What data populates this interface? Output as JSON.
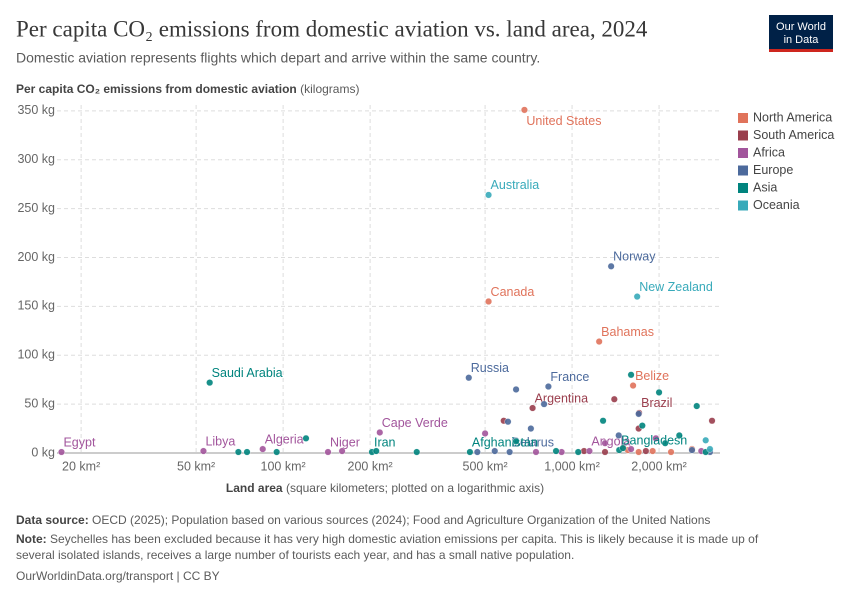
{
  "header": {
    "logo": [
      "Our World",
      "in Data"
    ]
  },
  "chart_data": {
    "type": "scatter",
    "title": "Per capita CO₂ emissions from domestic aviation vs. land area, 2024",
    "subtitle": "Domestic aviation represents flights which depart and arrive within the same country.",
    "y_label": "Per capita CO₂ emissions from domestic aviation",
    "y_label_unit": "(kilograms)",
    "x_label": "Land area",
    "x_label_note": "(square kilometers; plotted on a logarithmic axis)",
    "x_log": true,
    "grid": true,
    "legend": "right",
    "xlim": [
      16.5,
      3250
    ],
    "ylim": [
      0,
      356
    ],
    "xticks": [
      {
        "value": 20,
        "label": "20 km²"
      },
      {
        "value": 50,
        "label": "50 km²"
      },
      {
        "value": 100,
        "label": "100 km²"
      },
      {
        "value": 200,
        "label": "200 km²"
      },
      {
        "value": 500,
        "label": "500 km²"
      },
      {
        "value": 1000,
        "label": "1,000 km²"
      },
      {
        "value": 2000,
        "label": "2,000 km²"
      }
    ],
    "yticks": [
      {
        "value": 0,
        "label": "0 kg"
      },
      {
        "value": 50,
        "label": "50 kg"
      },
      {
        "value": 100,
        "label": "100 kg"
      },
      {
        "value": 150,
        "label": "150 kg"
      },
      {
        "value": 200,
        "label": "200 kg"
      },
      {
        "value": 250,
        "label": "250 kg"
      },
      {
        "value": 300,
        "label": "300 kg"
      },
      {
        "value": 350,
        "label": "350 kg"
      }
    ],
    "series": [
      {
        "name": "North America",
        "color": "#e0735b",
        "x": [
          684,
          514,
          1241,
          1626,
          1500,
          1560,
          1900,
          2600,
          1700,
          2200
        ],
        "values": [
          351,
          155,
          114,
          69,
          5,
          3,
          2,
          4,
          1,
          1
        ],
        "labels": [
          "United States",
          "Canada",
          "Bahamas",
          "Belize",
          null,
          null,
          null,
          null,
          null,
          null
        ]
      },
      {
        "name": "South America",
        "color": "#9a3e4d",
        "x": [
          730,
          1706,
          1400,
          1700,
          3050,
          580,
          1100,
          1300,
          1800
        ],
        "values": [
          46,
          41,
          55,
          25,
          33,
          33,
          2,
          1,
          2
        ],
        "labels": [
          "Argentina",
          "Brazil",
          null,
          null,
          null,
          null,
          null,
          null,
          null
        ]
      },
      {
        "name": "Africa",
        "color": "#a2559c",
        "x": [
          17.1,
          53,
          85,
          143,
          216,
          1148,
          500,
          1950,
          1300,
          160,
          920,
          2800,
          750,
          1600
        ],
        "values": [
          1,
          2,
          4,
          1,
          21,
          2,
          20,
          15,
          10,
          2,
          1,
          2,
          1,
          4
        ],
        "labels": [
          "Egypt",
          "Libya",
          "Algeria",
          "Niger",
          "Cape Verde",
          "Angola",
          null,
          null,
          null,
          null,
          null,
          null,
          null,
          null
        ]
      },
      {
        "name": "Europe",
        "color": "#4c6a9c",
        "x": [
          439,
          828,
          1365,
          608,
          640,
          800,
          600,
          720,
          1450,
          1700,
          540,
          2600,
          3000,
          470
        ],
        "values": [
          77,
          68,
          191,
          1,
          65,
          50,
          32,
          25,
          18,
          40,
          2,
          3,
          1,
          1
        ],
        "labels": [
          "Russia",
          "France",
          "Norway",
          "Belarus",
          null,
          null,
          null,
          null,
          null,
          null,
          null,
          null,
          null,
          null
        ]
      },
      {
        "name": "Asia",
        "color": "#00847e",
        "x": [
          55.7,
          203,
          443,
          1456,
          120,
          70,
          75,
          95,
          210,
          290,
          640,
          1280,
          1600,
          2000,
          2700,
          2350,
          1500,
          2100,
          1750,
          880,
          1050,
          2900
        ],
        "values": [
          72,
          1,
          1,
          3,
          15,
          1,
          1,
          1,
          2,
          1,
          12,
          33,
          80,
          62,
          48,
          18,
          5,
          10,
          28,
          2,
          1,
          1
        ],
        "labels": [
          "Saudi Arabia",
          "Iran",
          "Afghanistan",
          "Bangladesh",
          null,
          null,
          null,
          null,
          null,
          null,
          null,
          null,
          null,
          null,
          null,
          null,
          null,
          null,
          null,
          null,
          null,
          null
        ]
      },
      {
        "name": "Oceania",
        "color": "#38aaba",
        "x": [
          514,
          1680,
          2900,
          3000
        ],
        "values": [
          264,
          160,
          13,
          4
        ],
        "labels": [
          "Australia",
          "New Zealand",
          null,
          null
        ]
      }
    ]
  },
  "footer": {
    "source_label": "Data source:",
    "source": "OECD (2025); Population based on various sources (2024); Food and Agriculture Organization of the United Nations",
    "note_label": "Note:",
    "note_lines": [
      "Seychelles has been excluded because it has very high domestic aviation emissions per capita. This is likely because it is made up of",
      "several isolated islands, receives a large number of tourists each year, and has a small native population."
    ],
    "url": "OurWorldinData.org/transport | CC BY"
  }
}
